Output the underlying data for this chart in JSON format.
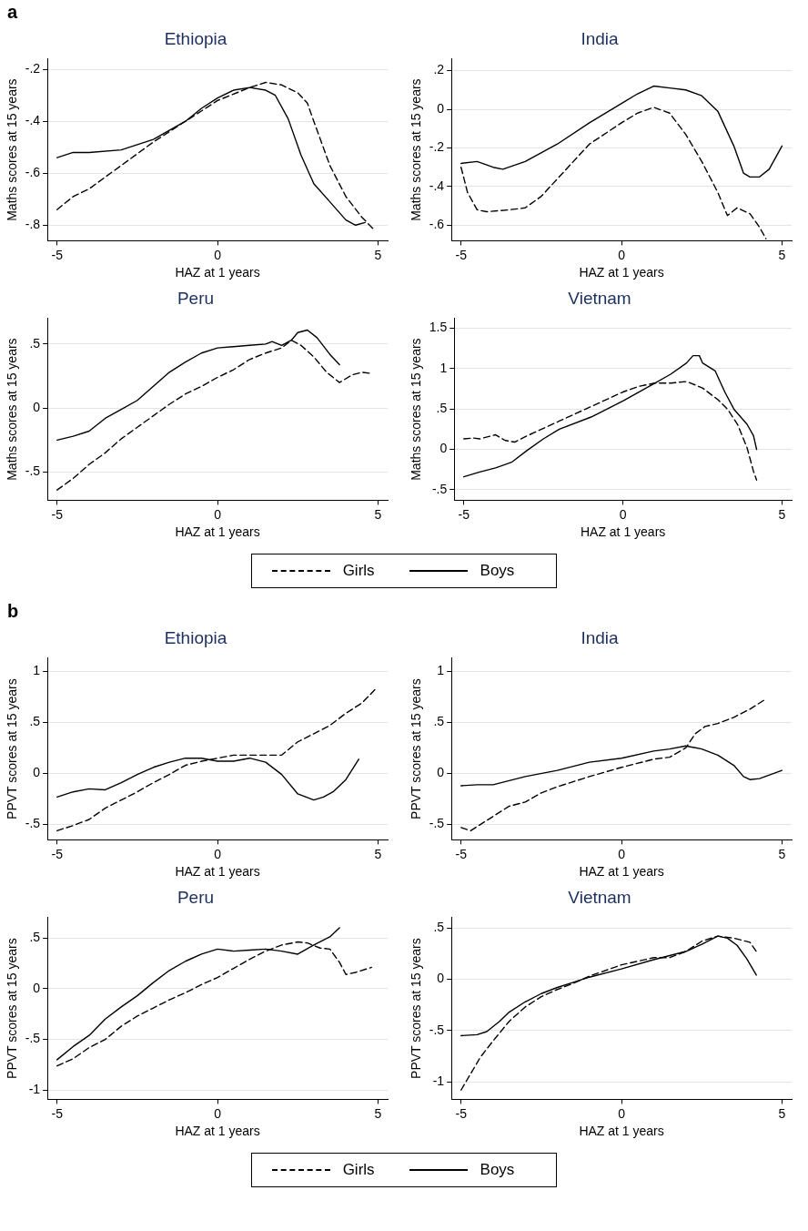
{
  "chart_data": [
    {
      "type": "line",
      "title": "Ethiopia",
      "xlabel": "HAZ at 1 years",
      "ylabel": "Maths scores at 15 years",
      "annotations": [
        "a"
      ],
      "xlim": [
        -5.3,
        5.3
      ],
      "xticks": [
        -5,
        0,
        5
      ],
      "ylim": [
        -0.86,
        -0.16
      ],
      "yticks": [
        {
          "value": -0.8,
          "label": "-.8"
        },
        {
          "value": -0.6,
          "label": "-.6"
        },
        {
          "value": -0.4,
          "label": "-.4"
        },
        {
          "value": -0.2,
          "label": "-.2"
        }
      ],
      "grid": "y",
      "marker": "none",
      "series": [
        {
          "color": "#000000",
          "line_style": "dashed",
          "x": [
            -5,
            -4.5,
            -4,
            -3,
            -2,
            -1,
            0,
            1,
            1.5,
            2,
            2.5,
            2.8,
            3,
            3.5,
            4,
            4.5,
            4.9
          ],
          "values": [
            -0.74,
            -0.69,
            -0.66,
            -0.57,
            -0.48,
            -0.4,
            -0.32,
            -0.27,
            -0.25,
            -0.26,
            -0.29,
            -0.33,
            -0.4,
            -0.57,
            -0.69,
            -0.77,
            -0.82
          ]
        },
        {
          "color": "#000000",
          "line_style": "solid",
          "x": [
            -5,
            -4.5,
            -4,
            -3,
            -2,
            -1,
            -0.5,
            0,
            0.5,
            1,
            1.5,
            1.8,
            2.2,
            2.6,
            3,
            3.5,
            4,
            4.3,
            4.6
          ],
          "values": [
            -0.54,
            -0.52,
            -0.52,
            -0.51,
            -0.47,
            -0.4,
            -0.35,
            -0.31,
            -0.28,
            -0.27,
            -0.28,
            -0.3,
            -0.39,
            -0.53,
            -0.64,
            -0.71,
            -0.78,
            -0.8,
            -0.79
          ]
        }
      ]
    },
    {
      "type": "line",
      "title": "India",
      "xlabel": "HAZ at 1 years",
      "ylabel": "Maths scores at 15 years",
      "xlim": [
        -5.3,
        5.3
      ],
      "xticks": [
        -5,
        0,
        5
      ],
      "ylim": [
        -0.68,
        0.26
      ],
      "yticks": [
        {
          "value": -0.6,
          "label": "-.6"
        },
        {
          "value": -0.4,
          "label": "-.4"
        },
        {
          "value": -0.2,
          "label": "-.2"
        },
        0,
        {
          "value": 0.2,
          "label": ".2"
        }
      ],
      "grid": "y",
      "marker": "none",
      "series": [
        {
          "color": "#000000",
          "line_style": "dashed",
          "x": [
            -5,
            -4.8,
            -4.5,
            -4.2,
            -3.5,
            -3,
            -2.5,
            -2,
            -1,
            0,
            0.5,
            1,
            1.5,
            2,
            2.5,
            3,
            3.3,
            3.6,
            4,
            4.3,
            4.5
          ],
          "values": [
            -0.3,
            -0.43,
            -0.52,
            -0.53,
            -0.52,
            -0.51,
            -0.45,
            -0.36,
            -0.18,
            -0.07,
            -0.02,
            0.01,
            -0.02,
            -0.13,
            -0.27,
            -0.43,
            -0.55,
            -0.51,
            -0.54,
            -0.61,
            -0.67
          ]
        },
        {
          "color": "#000000",
          "line_style": "solid",
          "x": [
            -5,
            -4.5,
            -4,
            -3.7,
            -3,
            -2,
            -1,
            0,
            0.5,
            1,
            1.5,
            2,
            2.5,
            3,
            3.5,
            3.8,
            4,
            4.3,
            4.6,
            5
          ],
          "values": [
            -0.28,
            -0.27,
            -0.3,
            -0.31,
            -0.27,
            -0.18,
            -0.07,
            0.03,
            0.08,
            0.12,
            0.11,
            0.1,
            0.07,
            -0.01,
            -0.19,
            -0.33,
            -0.35,
            -0.35,
            -0.31,
            -0.19
          ]
        }
      ]
    },
    {
      "type": "line",
      "title": "Peru",
      "xlabel": "HAZ at 1 years",
      "ylabel": "Maths scores at 15 years",
      "xlim": [
        -5.3,
        5.3
      ],
      "xticks": [
        -5,
        0,
        5
      ],
      "ylim": [
        -0.72,
        0.7
      ],
      "yticks": [
        {
          "value": -0.5,
          "label": "-.5"
        },
        0,
        {
          "value": 0.5,
          "label": ".5"
        }
      ],
      "grid": "y",
      "marker": "none",
      "series": [
        {
          "color": "#000000",
          "line_style": "dashed",
          "x": [
            -5,
            -4.5,
            -4,
            -3.5,
            -3,
            -2.5,
            -2,
            -1.5,
            -1,
            -0.5,
            0,
            0.5,
            1,
            1.5,
            2,
            2.3,
            2.6,
            3,
            3.4,
            3.8,
            4.2,
            4.5,
            4.8
          ],
          "values": [
            -0.64,
            -0.55,
            -0.44,
            -0.35,
            -0.24,
            -0.15,
            -0.06,
            0.03,
            0.11,
            0.17,
            0.24,
            0.3,
            0.38,
            0.43,
            0.47,
            0.53,
            0.49,
            0.4,
            0.28,
            0.2,
            0.26,
            0.28,
            0.27
          ]
        },
        {
          "color": "#000000",
          "line_style": "solid",
          "x": [
            -5,
            -4.5,
            -4,
            -3.5,
            -3,
            -2.5,
            -2,
            -1.5,
            -1,
            -0.5,
            0,
            0.5,
            1,
            1.5,
            1.7,
            2,
            2.3,
            2.5,
            2.8,
            3.1,
            3.5,
            3.8
          ],
          "values": [
            -0.25,
            -0.22,
            -0.18,
            -0.08,
            -0.01,
            0.06,
            0.17,
            0.28,
            0.36,
            0.43,
            0.47,
            0.48,
            0.49,
            0.5,
            0.52,
            0.49,
            0.53,
            0.59,
            0.61,
            0.55,
            0.42,
            0.34
          ]
        }
      ]
    },
    {
      "type": "line",
      "title": "Vietnam",
      "xlabel": "HAZ at 1 years",
      "ylabel": "Maths scores at 15 years",
      "xlim": [
        -5.3,
        5.3
      ],
      "xticks": [
        -5,
        0,
        5
      ],
      "ylim": [
        -0.63,
        1.62
      ],
      "yticks": [
        {
          "value": -0.5,
          "label": "-.5"
        },
        0,
        {
          "value": 0.5,
          "label": ".5"
        },
        1,
        1.5
      ],
      "grid": "y",
      "marker": "none",
      "legend": "bottom",
      "series": [
        {
          "name": "Girls",
          "color": "#000000",
          "line_style": "dashed",
          "x": [
            -5,
            -4.7,
            -4.5,
            -4,
            -3.7,
            -3.4,
            -3,
            -2,
            -1,
            0,
            0.5,
            1,
            1.5,
            2,
            2.5,
            3,
            3.3,
            3.6,
            3.9,
            4.1,
            4.2
          ],
          "values": [
            0.13,
            0.14,
            0.13,
            0.18,
            0.11,
            0.09,
            0.17,
            0.35,
            0.53,
            0.71,
            0.78,
            0.82,
            0.82,
            0.84,
            0.76,
            0.61,
            0.49,
            0.31,
            0.02,
            -0.27,
            -0.38
          ]
        },
        {
          "name": "Boys",
          "color": "#000000",
          "line_style": "solid",
          "x": [
            -5,
            -4.5,
            -4,
            -3.5,
            -3,
            -2.5,
            -2,
            -1,
            0,
            1,
            1.5,
            2,
            2.2,
            2.4,
            2.5,
            2.9,
            3.2,
            3.5,
            3.9,
            4.1,
            4.2
          ],
          "values": [
            -0.34,
            -0.28,
            -0.23,
            -0.16,
            -0.01,
            0.13,
            0.25,
            0.4,
            0.6,
            0.82,
            0.93,
            1.07,
            1.16,
            1.16,
            1.07,
            0.97,
            0.71,
            0.49,
            0.31,
            0.17,
            0
          ]
        }
      ]
    },
    {
      "type": "line",
      "title": "Ethiopia",
      "xlabel": "HAZ at 1 years",
      "ylabel": "PPVT scores at 15 years",
      "annotations": [
        "b"
      ],
      "xlim": [
        -5.3,
        5.3
      ],
      "xticks": [
        -5,
        0,
        5
      ],
      "ylim": [
        -0.65,
        1.13
      ],
      "yticks": [
        {
          "value": -0.5,
          "label": "-.5"
        },
        0,
        {
          "value": 0.5,
          "label": ".5"
        },
        1
      ],
      "grid": "y",
      "marker": "none",
      "series": [
        {
          "color": "#000000",
          "line_style": "dashed",
          "x": [
            -5,
            -4.5,
            -4,
            -3.5,
            -3,
            -2.5,
            -2,
            -1.5,
            -1,
            -0.5,
            0,
            0.5,
            1,
            1.5,
            2,
            2.5,
            3,
            3.5,
            4,
            4.5,
            4.9
          ],
          "values": [
            -0.56,
            -0.51,
            -0.45,
            -0.34,
            -0.26,
            -0.18,
            -0.09,
            -0.01,
            0.08,
            0.12,
            0.15,
            0.18,
            0.18,
            0.18,
            0.18,
            0.31,
            0.39,
            0.47,
            0.59,
            0.69,
            0.82
          ]
        },
        {
          "color": "#000000",
          "line_style": "solid",
          "x": [
            -5,
            -4.5,
            -4,
            -3.5,
            -3,
            -2.5,
            -2,
            -1.5,
            -1,
            -0.5,
            0,
            0.5,
            1,
            1.5,
            2,
            2.5,
            3,
            3.3,
            3.6,
            4,
            4.4
          ],
          "values": [
            -0.23,
            -0.18,
            -0.15,
            -0.16,
            -0.09,
            -0.01,
            0.06,
            0.11,
            0.15,
            0.15,
            0.12,
            0.12,
            0.15,
            0.11,
            -0.01,
            -0.2,
            -0.26,
            -0.23,
            -0.18,
            -0.06,
            0.14
          ]
        }
      ]
    },
    {
      "type": "line",
      "title": "India",
      "xlabel": "HAZ at 1 years",
      "ylabel": "PPVT scores at 15 years",
      "xlim": [
        -5.3,
        5.3
      ],
      "xticks": [
        -5,
        0,
        5
      ],
      "ylim": [
        -0.65,
        1.13
      ],
      "yticks": [
        {
          "value": -0.5,
          "label": "-.5"
        },
        0,
        {
          "value": 0.5,
          "label": ".5"
        },
        1
      ],
      "grid": "y",
      "marker": "none",
      "series": [
        {
          "color": "#000000",
          "line_style": "dashed",
          "x": [
            -5,
            -4.7,
            -4.4,
            -4,
            -3.5,
            -3,
            -2.5,
            -2,
            -1,
            0,
            1,
            1.5,
            2,
            2.3,
            2.6,
            3,
            3.5,
            4,
            4.5
          ],
          "values": [
            -0.53,
            -0.56,
            -0.5,
            -0.42,
            -0.32,
            -0.28,
            -0.19,
            -0.13,
            -0.03,
            0.06,
            0.14,
            0.16,
            0.25,
            0.39,
            0.46,
            0.49,
            0.55,
            0.63,
            0.73
          ]
        },
        {
          "color": "#000000",
          "line_style": "solid",
          "x": [
            -5,
            -4.5,
            -4,
            -3,
            -2,
            -1,
            0,
            1,
            1.5,
            2,
            2.5,
            3,
            3.5,
            3.8,
            4,
            4.3,
            5
          ],
          "values": [
            -0.12,
            -0.11,
            -0.11,
            -0.03,
            0.03,
            0.11,
            0.15,
            0.22,
            0.24,
            0.27,
            0.24,
            0.18,
            0.08,
            -0.03,
            -0.06,
            -0.05,
            0.03
          ]
        }
      ]
    },
    {
      "type": "line",
      "title": "Peru",
      "xlabel": "HAZ at 1 years",
      "ylabel": "PPVT scores at 15 years",
      "xlim": [
        -5.3,
        5.3
      ],
      "xticks": [
        -5,
        0,
        5
      ],
      "ylim": [
        -1.09,
        0.7
      ],
      "yticks": [
        -1,
        {
          "value": -0.5,
          "label": "-.5"
        },
        0,
        {
          "value": 0.5,
          "label": ".5"
        }
      ],
      "grid": "y",
      "marker": "none",
      "series": [
        {
          "color": "#000000",
          "line_style": "dashed",
          "x": [
            -5,
            -4.5,
            -4,
            -3.5,
            -3,
            -2.5,
            -2,
            -1.5,
            -1,
            -0.5,
            0,
            0.5,
            1,
            1.5,
            2,
            2.5,
            2.8,
            3.2,
            3.5,
            3.8,
            4,
            4.3,
            4.8
          ],
          "values": [
            -0.76,
            -0.69,
            -0.58,
            -0.5,
            -0.37,
            -0.27,
            -0.19,
            -0.11,
            -0.04,
            0.04,
            0.11,
            0.2,
            0.29,
            0.37,
            0.43,
            0.46,
            0.45,
            0.4,
            0.39,
            0.26,
            0.14,
            0.16,
            0.21
          ]
        },
        {
          "color": "#000000",
          "line_style": "solid",
          "x": [
            -5,
            -4.5,
            -4,
            -3.5,
            -3,
            -2.5,
            -2,
            -1.5,
            -1,
            -0.5,
            0,
            0.5,
            1,
            1.5,
            2,
            2.5,
            3,
            3.5,
            3.8
          ],
          "values": [
            -0.7,
            -0.57,
            -0.46,
            -0.3,
            -0.18,
            -0.07,
            0.06,
            0.18,
            0.27,
            0.34,
            0.39,
            0.37,
            0.38,
            0.39,
            0.37,
            0.34,
            0.43,
            0.51,
            0.6
          ]
        }
      ]
    },
    {
      "type": "line",
      "title": "Vietnam",
      "xlabel": "HAZ at 1 years",
      "ylabel": "PPVT scores at 15 years",
      "xlim": [
        -5.3,
        5.3
      ],
      "xticks": [
        -5,
        0,
        5
      ],
      "ylim": [
        -1.17,
        0.6
      ],
      "yticks": [
        -1,
        {
          "value": -0.5,
          "label": "-.5"
        },
        0,
        {
          "value": 0.5,
          "label": ".5"
        }
      ],
      "grid": "y",
      "marker": "none",
      "legend": "bottom",
      "series": [
        {
          "name": "Girls",
          "color": "#000000",
          "line_style": "dashed",
          "x": [
            -5,
            -4.7,
            -4.4,
            -4,
            -3.5,
            -3,
            -2.5,
            -2,
            -1.5,
            -1,
            0,
            1,
            1.5,
            2,
            2.5,
            3,
            3.5,
            4,
            4.2
          ],
          "values": [
            -1.08,
            -0.92,
            -0.76,
            -0.6,
            -0.41,
            -0.27,
            -0.17,
            -0.1,
            -0.04,
            0.03,
            0.14,
            0.21,
            0.21,
            0.27,
            0.37,
            0.42,
            0.4,
            0.36,
            0.27
          ]
        },
        {
          "name": "Boys",
          "color": "#000000",
          "line_style": "solid",
          "x": [
            -5,
            -4.5,
            -4.2,
            -3.8,
            -3.5,
            -3,
            -2.5,
            -2,
            -1.5,
            -1,
            0,
            1,
            2,
            2.5,
            3,
            3.3,
            3.6,
            3.9,
            4.2
          ],
          "values": [
            -0.55,
            -0.54,
            -0.51,
            -0.41,
            -0.32,
            -0.22,
            -0.14,
            -0.08,
            -0.03,
            0.02,
            0.1,
            0.19,
            0.27,
            0.34,
            0.42,
            0.4,
            0.33,
            0.2,
            0.04
          ]
        }
      ]
    }
  ]
}
